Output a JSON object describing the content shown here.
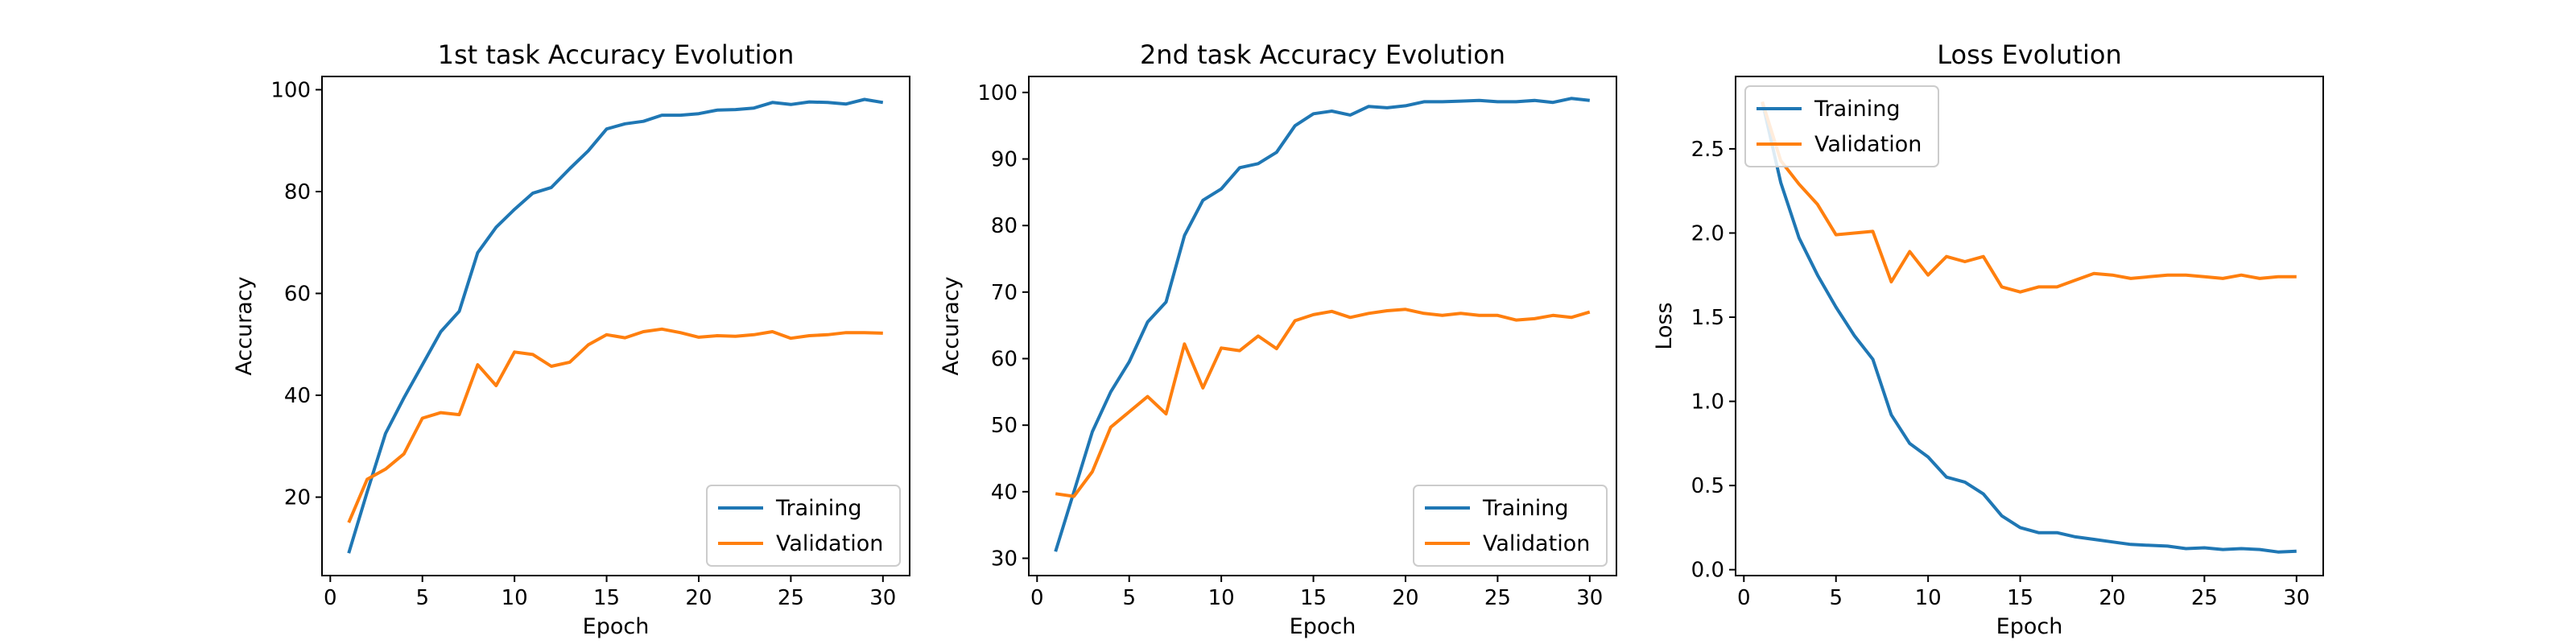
{
  "chart_data": [
    {
      "type": "line",
      "title": "1st task Accuracy Evolution",
      "xlabel": "Epoch",
      "ylabel": "Accuracy",
      "xlim": [
        -0.45,
        31.45
      ],
      "ylim": [
        4.6,
        102.6
      ],
      "xticks": [
        0,
        5,
        10,
        15,
        20,
        25,
        30
      ],
      "yticks": [
        20,
        40,
        60,
        80,
        100
      ],
      "legend": "lower-right",
      "grid": false,
      "x": [
        1,
        2,
        3,
        4,
        5,
        6,
        7,
        8,
        9,
        10,
        11,
        12,
        13,
        14,
        15,
        16,
        17,
        18,
        19,
        20,
        21,
        22,
        23,
        24,
        25,
        26,
        27,
        28,
        29,
        30
      ],
      "series": [
        {
          "name": "Training",
          "color": "#1f77b4",
          "values": [
            9,
            21,
            32.5,
            39.5,
            46,
            52.5,
            56.5,
            68,
            73,
            76.5,
            79.7,
            80.8,
            84.5,
            88,
            92.3,
            93.3,
            93.8,
            95,
            95,
            95.3,
            96,
            96.1,
            96.4,
            97.5,
            97.1,
            97.6,
            97.5,
            97.2,
            98.1,
            97.5
          ]
        },
        {
          "name": "Validation",
          "color": "#ff7f0e",
          "values": [
            15,
            23.5,
            25.5,
            28.5,
            35.5,
            36.6,
            36.2,
            46,
            41.9,
            48.5,
            48,
            45.7,
            46.5,
            49.9,
            51.9,
            51.3,
            52.5,
            53,
            52.3,
            51.4,
            51.7,
            51.6,
            51.9,
            52.5,
            51.2,
            51.7,
            51.9,
            52.3,
            52.3,
            52.2
          ]
        }
      ]
    },
    {
      "type": "line",
      "title": "2nd task Accuracy Evolution",
      "xlabel": "Epoch",
      "ylabel": "Accuracy",
      "xlim": [
        -0.45,
        31.45
      ],
      "ylim": [
        27.4,
        102.4
      ],
      "xticks": [
        0,
        5,
        10,
        15,
        20,
        25,
        30
      ],
      "yticks": [
        30,
        40,
        50,
        60,
        70,
        80,
        90,
        100
      ],
      "legend": "lower-right",
      "grid": false,
      "x": [
        1,
        2,
        3,
        4,
        5,
        6,
        7,
        8,
        9,
        10,
        11,
        12,
        13,
        14,
        15,
        16,
        17,
        18,
        19,
        20,
        21,
        22,
        23,
        24,
        25,
        26,
        27,
        28,
        29,
        30
      ],
      "series": [
        {
          "name": "Training",
          "color": "#1f77b4",
          "values": [
            31,
            40,
            49,
            55,
            59.5,
            65.5,
            68.5,
            78.5,
            83.8,
            85.5,
            88.7,
            89.3,
            91,
            95,
            96.8,
            97.2,
            96.6,
            97.9,
            97.7,
            98,
            98.6,
            98.6,
            98.7,
            98.8,
            98.6,
            98.6,
            98.8,
            98.5,
            99.1,
            98.8
          ]
        },
        {
          "name": "Validation",
          "color": "#ff7f0e",
          "values": [
            39.7,
            39.3,
            43,
            49.7,
            52,
            54.3,
            51.7,
            62.2,
            55.6,
            61.6,
            61.2,
            63.4,
            61.5,
            65.7,
            66.6,
            67.1,
            66.2,
            66.8,
            67.2,
            67.4,
            66.8,
            66.5,
            66.8,
            66.5,
            66.5,
            65.8,
            66,
            66.5,
            66.2,
            67
          ]
        }
      ]
    },
    {
      "type": "line",
      "title": "Loss Evolution",
      "xlabel": "Epoch",
      "ylabel": "Loss",
      "xlim": [
        -0.45,
        31.45
      ],
      "ylim": [
        -0.035,
        2.93
      ],
      "xticks": [
        0,
        5,
        10,
        15,
        20,
        25,
        30
      ],
      "yticks": [
        0.0,
        0.5,
        1.0,
        1.5,
        2.0,
        2.5
      ],
      "tick_labels_y": [
        "0.0",
        "0.5",
        "1.0",
        "1.5",
        "2.0",
        "2.5"
      ],
      "legend": "upper-left",
      "grid": false,
      "x": [
        1,
        2,
        3,
        4,
        5,
        6,
        7,
        8,
        9,
        10,
        11,
        12,
        13,
        14,
        15,
        16,
        17,
        18,
        19,
        20,
        21,
        22,
        23,
        24,
        25,
        26,
        27,
        28,
        29,
        30
      ],
      "series": [
        {
          "name": "Training",
          "color": "#1f77b4",
          "values": [
            2.78,
            2.3,
            1.97,
            1.75,
            1.56,
            1.39,
            1.25,
            0.92,
            0.75,
            0.67,
            0.55,
            0.52,
            0.45,
            0.32,
            0.25,
            0.22,
            0.22,
            0.195,
            0.18,
            0.165,
            0.15,
            0.145,
            0.14,
            0.125,
            0.13,
            0.12,
            0.125,
            0.12,
            0.105,
            0.11
          ]
        },
        {
          "name": "Validation",
          "color": "#ff7f0e",
          "values": [
            2.78,
            2.43,
            2.29,
            2.17,
            1.99,
            2,
            2.01,
            1.71,
            1.89,
            1.75,
            1.86,
            1.83,
            1.86,
            1.68,
            1.65,
            1.68,
            1.68,
            1.72,
            1.76,
            1.75,
            1.73,
            1.74,
            1.75,
            1.75,
            1.74,
            1.73,
            1.75,
            1.73,
            1.74,
            1.74
          ]
        }
      ]
    }
  ]
}
